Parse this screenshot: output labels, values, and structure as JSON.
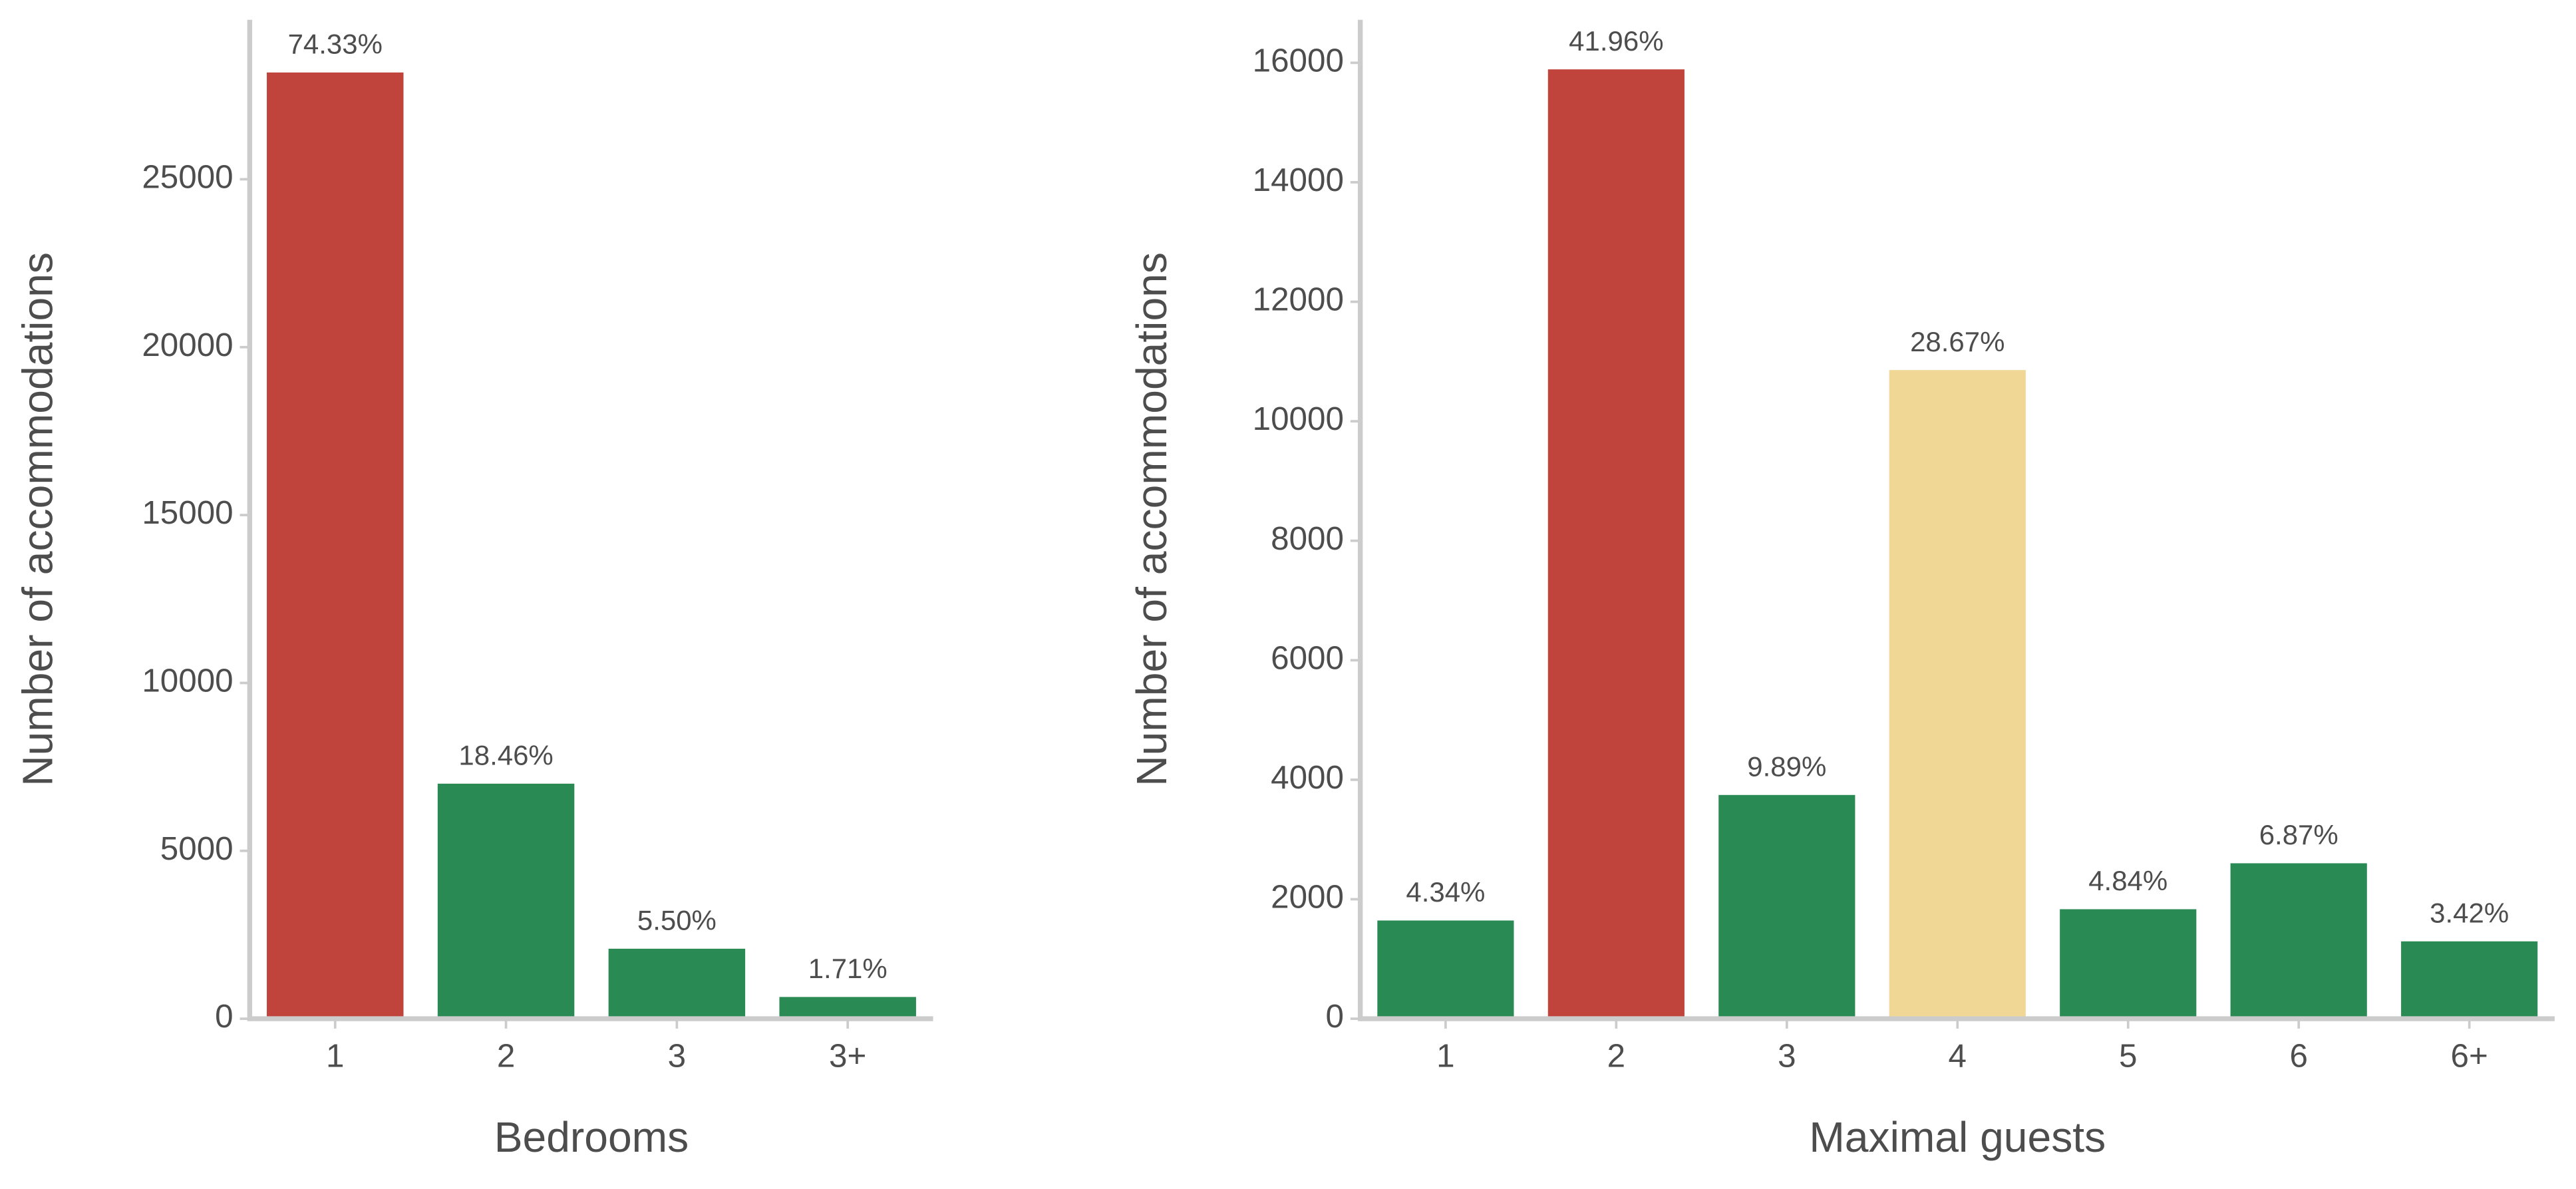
{
  "chart_data": [
    {
      "type": "bar",
      "xlabel": "Bedrooms",
      "ylabel": "Number of accommodations",
      "categories": [
        "1",
        "2",
        "3",
        "3+"
      ],
      "values": [
        28180,
        7000,
        2085,
        648
      ],
      "bar_labels": [
        "74.33%",
        "18.46%",
        "5.50%",
        "1.71%"
      ],
      "colors": [
        "#c0443c",
        "#2a8a53",
        "#2a8a53",
        "#2a8a53"
      ],
      "ylim": [
        0,
        29750
      ],
      "yticks": [
        0,
        5000,
        10000,
        15000,
        20000,
        25000
      ]
    },
    {
      "type": "bar",
      "xlabel": "Maximal guests",
      "ylabel": "Number of accommodations",
      "categories": [
        "1",
        "2",
        "3",
        "4",
        "5",
        "6",
        "6+"
      ],
      "values": [
        1644,
        15890,
        3745,
        10857,
        1833,
        2602,
        1295
      ],
      "bar_labels": [
        "4.34%",
        "41.96%",
        "9.89%",
        "28.67%",
        "4.84%",
        "6.87%",
        "3.42%"
      ],
      "colors": [
        "#2a8a53",
        "#c0443c",
        "#2a8a53",
        "#f0d795",
        "#2a8a53",
        "#2a8a53",
        "#2a8a53"
      ],
      "ylim": [
        0,
        16720
      ],
      "yticks": [
        0,
        2000,
        4000,
        6000,
        8000,
        10000,
        12000,
        14000,
        16000
      ]
    }
  ]
}
